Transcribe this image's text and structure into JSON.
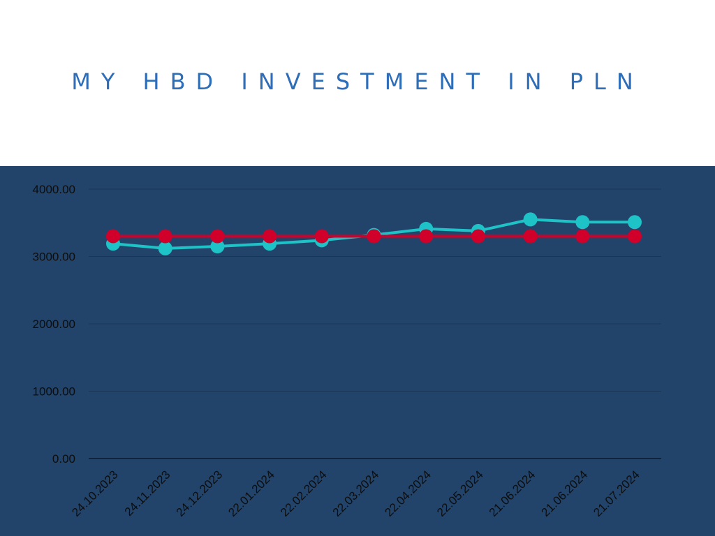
{
  "chart_data": {
    "type": "line",
    "title": "MY HBD INVESTMENT IN PLN",
    "xlabel": "",
    "ylabel": "",
    "categories": [
      "24.10.2023",
      "24.11.2023",
      "24.12.2023",
      "22.01.2024",
      "22.02.2024",
      "22.03.2024",
      "22.04.2024",
      "22.05.2024",
      "21.06.2024",
      "21.06.2024",
      "21.07.2024"
    ],
    "y_ticks": [
      "0.00",
      "1000.00",
      "2000.00",
      "3000.00",
      "4000.00"
    ],
    "ylim": [
      0,
      4000
    ],
    "grid": true,
    "series": [
      {
        "color": "#1ec3c8",
        "values": [
          3190,
          3120,
          3150,
          3190,
          3240,
          3320,
          3410,
          3380,
          3550,
          3510,
          3510
        ]
      },
      {
        "color": "#d0002a",
        "values": [
          3300,
          3300,
          3300,
          3300,
          3300,
          3300,
          3300,
          3300,
          3300,
          3300,
          3300
        ]
      }
    ]
  }
}
